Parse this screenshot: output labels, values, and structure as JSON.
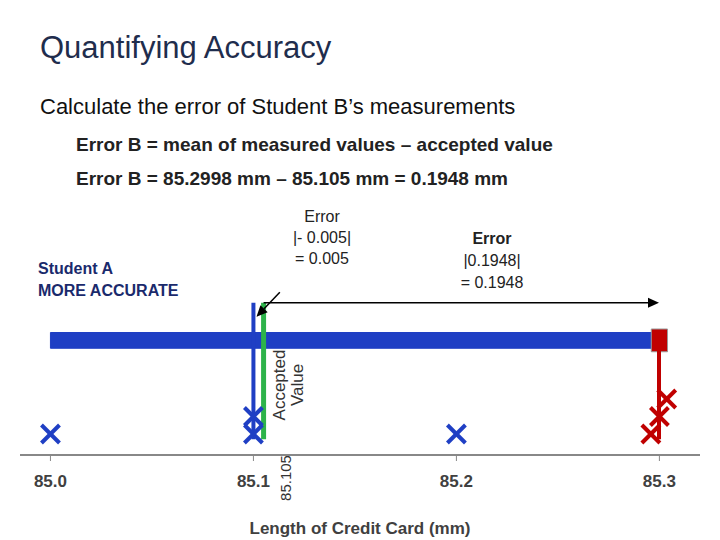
{
  "title": "Quantifying Accuracy",
  "subtitle": "Calculate the error of Student B’s measurements",
  "formula": [
    "Error B = mean of measured values – accepted value",
    "Error B = 85.2998 mm – 85.105 mm = 0.1948 mm"
  ],
  "chart_data": {
    "type": "scatter",
    "x_label": "Length of Credit Card (mm)",
    "xlim": [
      84.985,
      85.32
    ],
    "xticks": [
      {
        "value": 85,
        "label": "85.0"
      },
      85.1,
      85.2,
      85.3
    ],
    "tick_labels": "x",
    "series": [
      {
        "color": "#1f3fc4",
        "marker": "x",
        "values": [
          85.0,
          85.1,
          85.1,
          85.2
        ],
        "range": [
          85.0,
          85.3
        ],
        "mean": 85.1
      },
      {
        "color": "#c00000",
        "marker": "x",
        "values": [
          85.2958,
          85.3,
          85.3036
        ],
        "range": [
          85.296,
          85.304
        ],
        "mean": 85.2998
      }
    ],
    "accepted_value": {
      "value": 85.105,
      "label": "85.105",
      "text": [
        "Accepted",
        "Value"
      ],
      "color": "#2db34a"
    },
    "annotations": [
      {
        "text": [
          "Error",
          "|- 0.005|",
          "= 0.005"
        ],
        "from": 85.105,
        "to": 85.1
      },
      {
        "text": [
          "Error",
          "|0.1948|",
          "= 0.1948"
        ],
        "from": 85.105,
        "to": 85.2998
      }
    ],
    "note": [
      "Student A",
      "MORE ACCURATE"
    ]
  }
}
